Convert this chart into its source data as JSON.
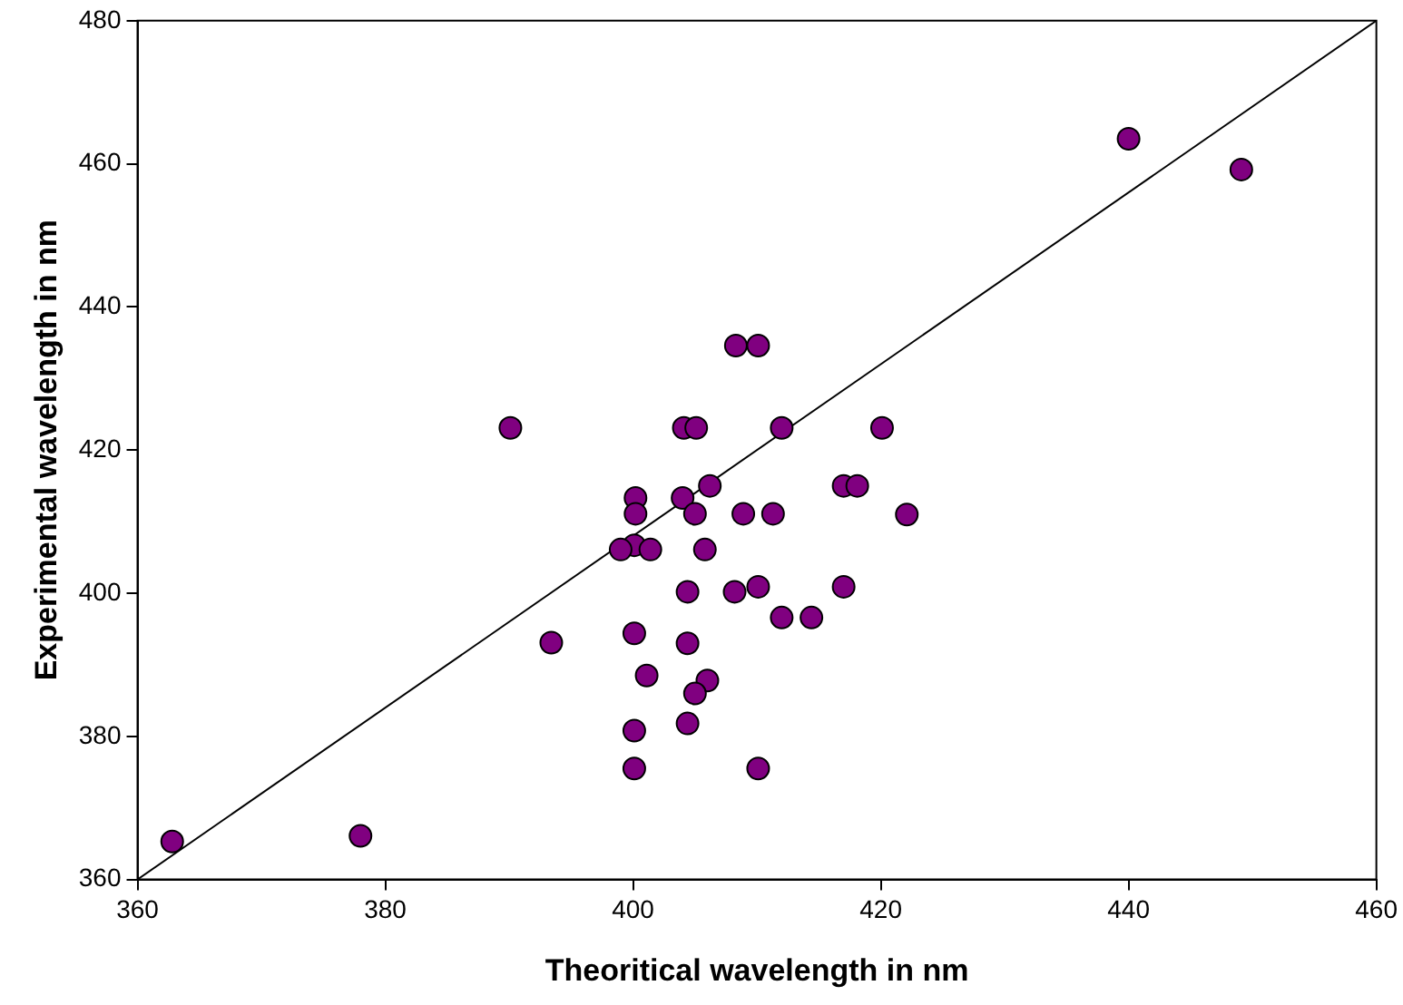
{
  "chart_data": {
    "type": "scatter",
    "xlabel": "Theoritical wavelength in nm",
    "ylabel": "Experimental wavelength in nm",
    "xlim": [
      360,
      460
    ],
    "xticks": [
      360,
      380,
      400,
      420,
      440,
      460
    ],
    "ylim": [
      360,
      480
    ],
    "yticks": [
      360,
      380,
      400,
      420,
      440,
      460,
      480
    ],
    "grid": false,
    "legend": false,
    "marker": "circle",
    "series": [
      {
        "color": "#800080",
        "x": [
          362.8,
          378.0,
          390.1,
          393.4,
          440.0,
          449.1,
          408.3,
          410.1,
          404.1,
          405.1,
          412.0,
          420.1,
          406.2,
          417.0,
          418.1,
          400.2,
          404.0,
          400.2,
          405.0,
          408.9,
          411.3,
          422.1,
          400.1,
          399.0,
          401.4,
          405.8,
          404.4,
          408.2,
          410.1,
          417.0,
          412.0,
          414.4,
          400.1,
          404.4,
          401.1,
          406.0,
          405.0,
          404.4,
          400.1,
          400.1,
          410.1
        ],
        "values": [
          365.3,
          366.1,
          423.1,
          393.1,
          463.5,
          459.2,
          434.6,
          434.6,
          423.1,
          423.1,
          423.1,
          423.1,
          415.0,
          415.0,
          415.0,
          413.3,
          413.3,
          411.1,
          411.1,
          411.1,
          411.1,
          411.0,
          406.7,
          406.1,
          406.1,
          406.1,
          400.2,
          400.2,
          400.9,
          400.9,
          396.6,
          396.6,
          394.4,
          393.0,
          388.5,
          387.8,
          386.0,
          381.8,
          380.8,
          375.5,
          375.5
        ]
      },
      {
        "type": "line",
        "color": "#000000",
        "marker": "none",
        "line_style": "solid",
        "x": [
          360,
          460
        ],
        "values": [
          360,
          480
        ]
      }
    ]
  }
}
